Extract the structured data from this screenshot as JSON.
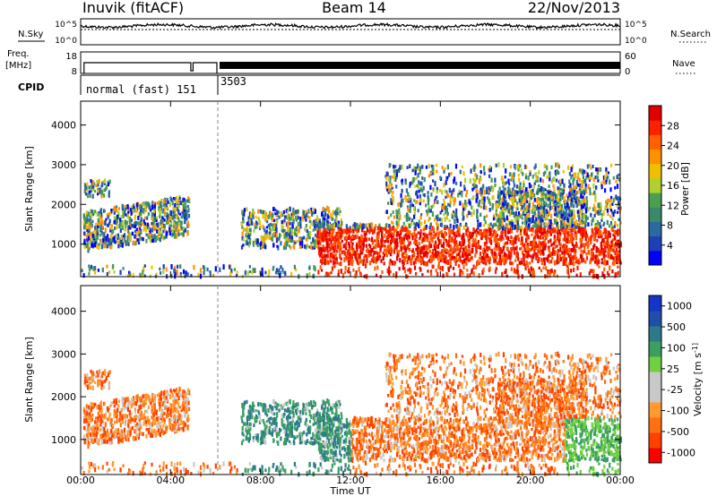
{
  "header": {
    "station": "Inuvik (fitACF)",
    "beam": "Beam 14",
    "date": "22/Nov/2013"
  },
  "left_labels": {
    "nsky": "N.Sky",
    "freq_line1": "Freq.",
    "freq_line2": "[MHz]",
    "cpid": "CPID"
  },
  "right_labels": {
    "nsearch": "N.Search",
    "nave": "Nave"
  },
  "cpid_labels": {
    "first": "normal (fast) 151",
    "second": "3503"
  },
  "colors": {
    "background": "#ffffff",
    "axis": "#000000",
    "power_scale": [
      "#0000ff",
      "#1f3fb8",
      "#2a6aa0",
      "#3a8a6a",
      "#4aa050",
      "#b0d030",
      "#f0c000",
      "#ff9000",
      "#ff6000",
      "#ff2000",
      "#e00000"
    ],
    "velocity_scale": [
      "#ff0000",
      "#ff4000",
      "#ff7010",
      "#ff9a30",
      "#c8c8c8",
      "#c8c8c8",
      "#70d040",
      "#3aa060",
      "#2a7a8a",
      "#1f4fa8",
      "#1535c8"
    ]
  },
  "chart_data": [
    {
      "type": "line",
      "name": "noise-panel",
      "left_ticks": [
        "10^5",
        "10^0"
      ],
      "right_ticks": [
        "10^5",
        "10^0"
      ],
      "left_series_label": "N.Sky",
      "right_series_label": "N.Search"
    },
    {
      "type": "line",
      "name": "frequency-panel",
      "left_ticks": [
        "18",
        "8"
      ],
      "right_ticks": [
        "60",
        "0"
      ],
      "left_series_label": "Freq. [MHz]",
      "right_series_label": "Nave",
      "cpid_segments": [
        {
          "label": "normal (fast) 151",
          "start_hour": 0,
          "end_hour": 6.1
        },
        {
          "label": "3503",
          "start_hour": 6.1,
          "end_hour": 24
        }
      ]
    },
    {
      "type": "heatmap",
      "name": "power-panel",
      "ylabel": "Slant Range [km]",
      "ylim": [
        180,
        4600
      ],
      "yticks": [
        "1000",
        "2000",
        "3000",
        "4000"
      ],
      "colorbar_label": "Power [dB]",
      "colorbar_ticks": [
        "4",
        "8",
        "12",
        "16",
        "20",
        "24",
        "28"
      ],
      "colorbar_range": [
        0,
        32
      ]
    },
    {
      "type": "heatmap",
      "name": "velocity-panel",
      "ylabel": "Slant Range [km]",
      "ylim": [
        180,
        4600
      ],
      "yticks": [
        "1000",
        "2000",
        "3000",
        "4000"
      ],
      "colorbar_label": "Velocity [m s^-1]",
      "colorbar_ticks": [
        "1000",
        "500",
        "100",
        "25",
        "-25",
        "-100",
        "-500",
        "-1000"
      ]
    }
  ],
  "xaxis": {
    "label": "Time UT",
    "ticks": [
      "00:00",
      "04:00",
      "08:00",
      "12:00",
      "16:00",
      "20:00",
      "00:00"
    ],
    "range_hours": [
      0,
      24
    ]
  }
}
